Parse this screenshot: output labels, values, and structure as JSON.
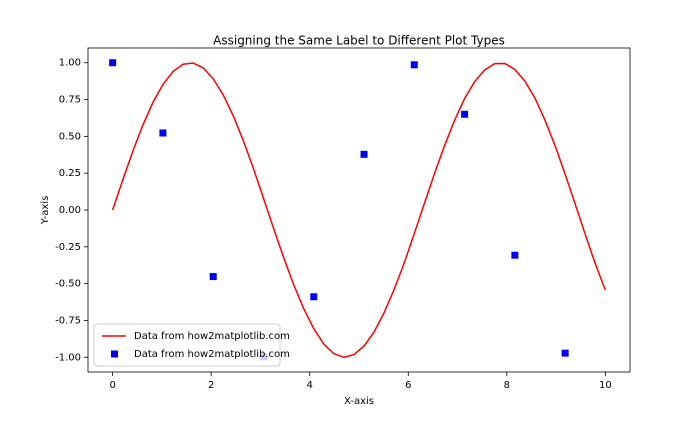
{
  "chart_data": {
    "type": "line",
    "title": "Assigning the Same Label to Different Plot Types",
    "x_label": "X-axis",
    "y_label": "Y-axis",
    "xlim": [
      -0.5,
      10.5
    ],
    "ylim": [
      -1.1,
      1.1
    ],
    "xticks": [
      0,
      2,
      4,
      6,
      8,
      10
    ],
    "yticks": [
      {
        "value": -1,
        "label": "-1.00"
      },
      {
        "value": -0.75,
        "label": "-0.75"
      },
      {
        "value": -0.5,
        "label": "-0.50"
      },
      {
        "value": -0.25,
        "label": "-0.25"
      },
      {
        "value": 0,
        "label": "0.00"
      },
      {
        "value": 0.25,
        "label": "0.25"
      },
      {
        "value": 0.5,
        "label": "0.50"
      },
      {
        "value": 0.75,
        "label": "0.75"
      },
      {
        "value": 1,
        "label": "1.00"
      }
    ],
    "grid": false,
    "legend": "lower left",
    "series": [
      {
        "name": "Data from how2matplotlib.com",
        "color": "#ff0000",
        "type": "line",
        "x": [
          0,
          0.204,
          0.408,
          0.612,
          0.816,
          1.02,
          1.224,
          1.429,
          1.633,
          1.837,
          2.041,
          2.245,
          2.449,
          2.653,
          2.857,
          3.061,
          3.265,
          3.469,
          3.673,
          3.878,
          4.082,
          4.286,
          4.49,
          4.694,
          4.898,
          5.102,
          5.306,
          5.51,
          5.714,
          5.918,
          6.122,
          6.327,
          6.531,
          6.735,
          6.939,
          7.143,
          7.347,
          7.551,
          7.755,
          7.959,
          8.163,
          8.367,
          8.571,
          8.776,
          8.98,
          9.184,
          9.388,
          9.592,
          9.796,
          10
        ],
        "values": [
          0,
          0.203,
          0.397,
          0.575,
          0.729,
          0.852,
          0.94,
          0.99,
          0.998,
          0.965,
          0.891,
          0.781,
          0.639,
          0.47,
          0.282,
          0.08,
          -0.123,
          -0.321,
          -0.506,
          -0.67,
          -0.806,
          -0.911,
          -0.976,
          -1.0,
          -0.982,
          -0.924,
          -0.828,
          -0.697,
          -0.539,
          -0.359,
          -0.16,
          0.044,
          0.246,
          0.436,
          0.608,
          0.756,
          0.871,
          0.951,
          0.994,
          0.995,
          0.954,
          0.875,
          0.76,
          0.609,
          0.436,
          0.243,
          0.04,
          -0.166,
          -0.366,
          -0.544
        ]
      },
      {
        "name": "Data from how2matplotlib.com",
        "color": "#0000ff",
        "type": "scatter",
        "x": [
          0,
          1.02,
          2.041,
          3.061,
          4.082,
          5.102,
          6.122,
          7.143,
          8.163,
          9.184
        ],
        "values": [
          1.0,
          0.523,
          -0.452,
          -0.997,
          -0.589,
          0.378,
          0.986,
          0.65,
          -0.307,
          -0.972
        ]
      }
    ]
  }
}
